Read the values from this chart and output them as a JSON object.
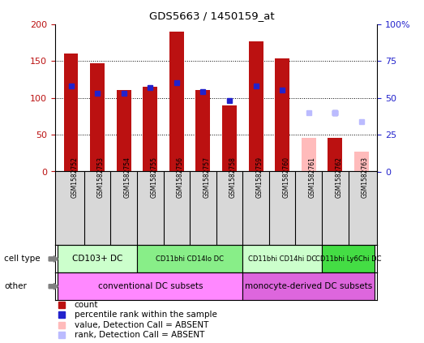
{
  "title": "GDS5663 / 1450159_at",
  "samples": [
    "GSM1582752",
    "GSM1582753",
    "GSM1582754",
    "GSM1582755",
    "GSM1582756",
    "GSM1582757",
    "GSM1582758",
    "GSM1582759",
    "GSM1582760",
    "GSM1582761",
    "GSM1582762",
    "GSM1582763"
  ],
  "count_values": [
    160,
    147,
    110,
    115,
    190,
    110,
    90,
    176,
    153,
    null,
    46,
    null
  ],
  "percentile_values": [
    58,
    53,
    53,
    57,
    60,
    54,
    48,
    58,
    55,
    null,
    40,
    null
  ],
  "count_absent": [
    null,
    null,
    null,
    null,
    null,
    null,
    null,
    null,
    null,
    46,
    null,
    27
  ],
  "percentile_absent": [
    null,
    null,
    null,
    null,
    null,
    null,
    null,
    null,
    null,
    40,
    40,
    34
  ],
  "count_color": "#bb1111",
  "percentile_color": "#2222cc",
  "count_absent_color": "#ffbbbb",
  "percentile_absent_color": "#bbbbff",
  "cell_type_configs": [
    {
      "label": "CD103+ DC",
      "start": 0,
      "end": 3,
      "color": "#ccffcc"
    },
    {
      "label": "CD11bhi CD14lo DC",
      "start": 3,
      "end": 7,
      "color": "#88ee88"
    },
    {
      "label": "CD11bhi CD14hi DC",
      "start": 7,
      "end": 10,
      "color": "#ccffcc"
    },
    {
      "label": "CD11bhi Ly6Chi DC",
      "start": 10,
      "end": 12,
      "color": "#44dd44"
    }
  ],
  "other_configs": [
    {
      "label": "conventional DC subsets",
      "start": 0,
      "end": 7,
      "color": "#ff88ff"
    },
    {
      "label": "monocyte-derived DC subsets",
      "start": 7,
      "end": 12,
      "color": "#dd66dd"
    }
  ],
  "ylim_left": [
    0,
    200
  ],
  "ylim_right": [
    0,
    100
  ],
  "yticks_left": [
    0,
    50,
    100,
    150,
    200
  ],
  "ytick_labels_left": [
    "0",
    "50",
    "100",
    "150",
    "200"
  ],
  "yticks_right": [
    0,
    25,
    50,
    75,
    100
  ],
  "ytick_labels_right": [
    "0",
    "25",
    "50",
    "75",
    "100%"
  ],
  "bar_width": 0.55,
  "marker_size": 5,
  "bg_gray": "#d8d8d8"
}
